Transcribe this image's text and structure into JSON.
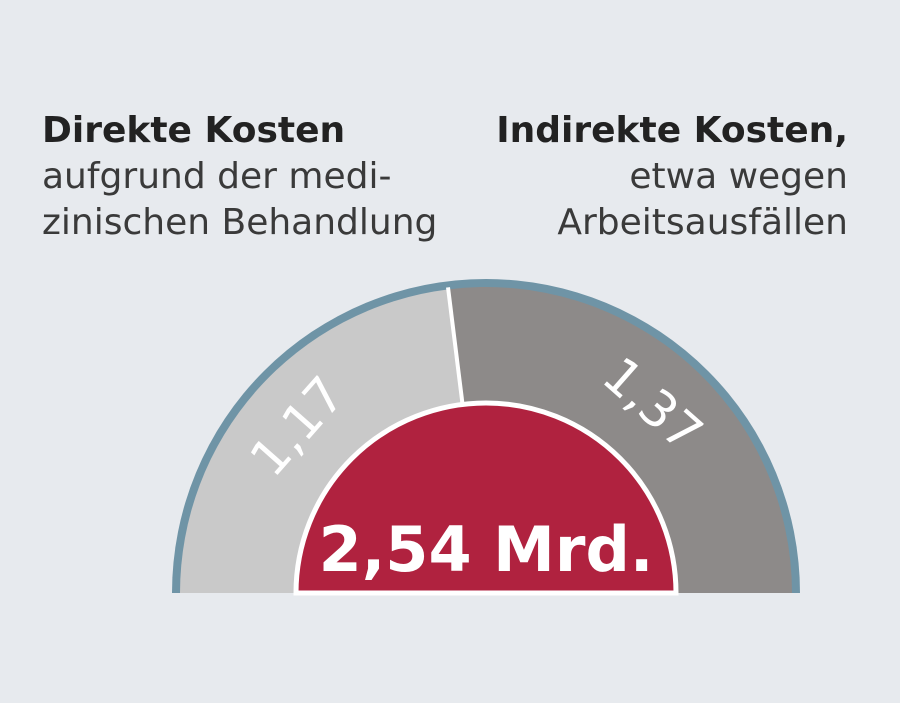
{
  "chart_data": {
    "type": "pie",
    "subtype": "half-donut",
    "total_label": "2,54 Mrd.",
    "total": 2.54,
    "segments": [
      {
        "name": "Direkte Kosten",
        "description_lines": [
          "aufgrund der medi-",
          "zinischen Behandlung"
        ],
        "value": 1.17,
        "value_label": "1,17",
        "color": "#c9c9c9"
      },
      {
        "name": "Indirekte Kosten,",
        "description_lines": [
          "etwa wegen",
          "Arbeitsausfällen"
        ],
        "value": 1.37,
        "value_label": "1,37",
        "color": "#8d8a89"
      }
    ],
    "colors": {
      "inner": "#b0223f",
      "outer_rim": "#6f94a6",
      "background": "#e7eaee"
    }
  }
}
